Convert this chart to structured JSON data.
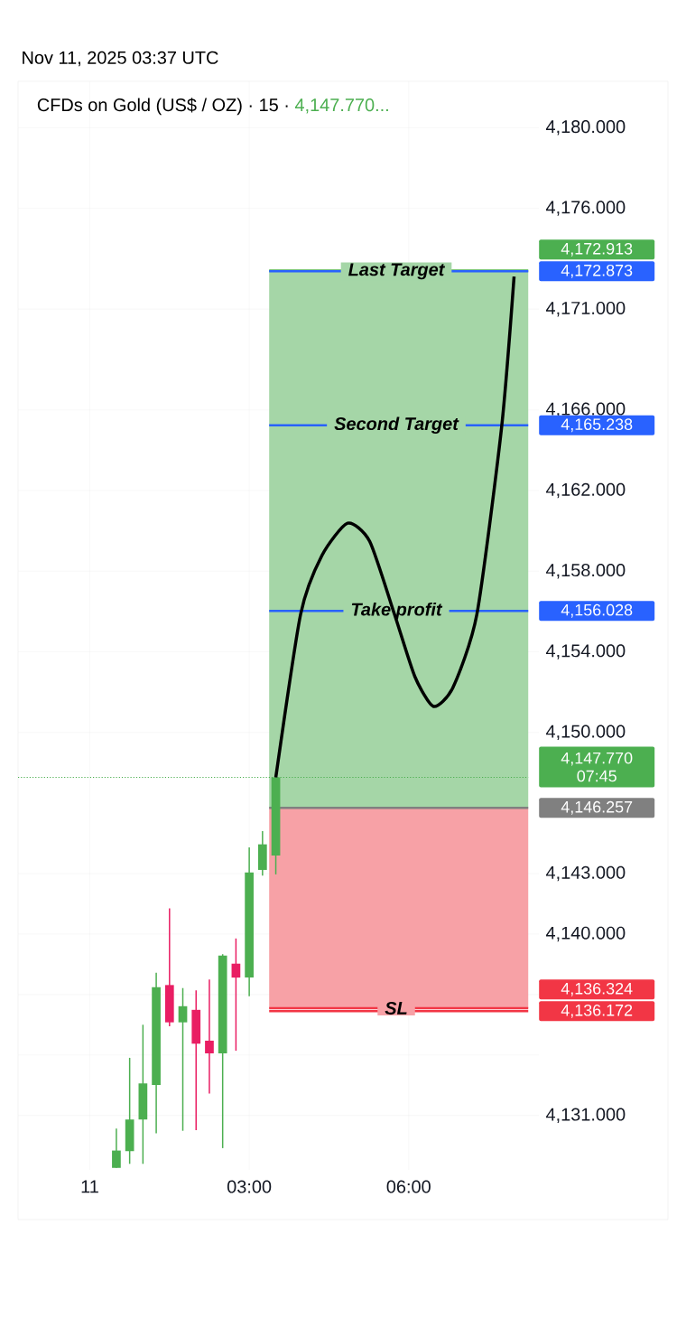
{
  "chart_data": {
    "type": "candlestick",
    "title": "CFDs on Gold (US$ / OZ) · 15 ·",
    "subtitle": "4,147.770...",
    "x": [
      "2025-11-11T00:30",
      "2025-11-11T00:45",
      "2025-11-11T01:00",
      "2025-11-11T01:15",
      "2025-11-11T01:30",
      "2025-11-11T01:45",
      "2025-11-11T02:00",
      "2025-11-11T02:15",
      "2025-11-11T02:30",
      "2025-11-11T02:45",
      "2025-11-11T03:00",
      "2025-11-11T03:15",
      "2025-11-11T03:30"
    ],
    "ohlc": [
      [
        4128.4,
        4130.35,
        4128.4,
        4129.26
      ],
      [
        4129.23,
        4133.86,
        4128.6,
        4130.8
      ],
      [
        4130.8,
        4135.5,
        4128.6,
        4132.59
      ],
      [
        4132.51,
        4138.08,
        4130.12,
        4137.36
      ],
      [
        4137.47,
        4141.27,
        4135.42,
        4135.62
      ],
      [
        4135.62,
        4137.32,
        4130.24,
        4136.42
      ],
      [
        4136.24,
        4137.21,
        4130.27,
        4134.56
      ],
      [
        4134.71,
        4137.74,
        4132.09,
        4134.08
      ],
      [
        4134.08,
        4139.0,
        4129.38,
        4138.93
      ],
      [
        4138.53,
        4139.78,
        4134.21,
        4137.84
      ],
      [
        4137.84,
        4144.3,
        4136.91,
        4143.06
      ],
      [
        4143.18,
        4145.1,
        4142.9,
        4144.45
      ],
      [
        4143.9,
        4147.9,
        4142.96,
        4147.77
      ]
    ],
    "colors": [
      "#4caf50",
      "#4caf50",
      "#4caf50",
      "#4caf50",
      "#e91e63",
      "#4caf50",
      "#e91e63",
      "#e91e63",
      "#4caf50",
      "#e91e63",
      "#4caf50",
      "#4caf50",
      "#4caf50"
    ],
    "series": [
      {
        "type": "line",
        "color": "#000000",
        "x": [
          "2025-11-11T03:30",
          "2025-11-11T03:58",
          "2025-11-11T04:22",
          "2025-11-11T04:51",
          "2025-11-11T05:16",
          "2025-11-11T05:44",
          "2025-11-11T06:07",
          "2025-11-11T06:28",
          "2025-11-11T06:50",
          "2025-11-11T07:17",
          "2025-11-11T07:45",
          "2025-11-11T07:59"
        ],
        "values": [
          4147.77,
          4155.86,
          4158.77,
          4160.38,
          4159.48,
          4155.86,
          4152.77,
          4151.29,
          4152.23,
          4155.86,
          4165.17,
          4172.61
        ]
      }
    ],
    "xlim": [
      "2025-11-10T22:39",
      "2025-11-11T08:27"
    ],
    "xticks": [
      {
        "value": "2025-11-11T00:00",
        "label": "11"
      },
      {
        "value": "2025-11-11T03:00",
        "label": "03:00"
      },
      {
        "value": "2025-11-11T06:00",
        "label": "06:00"
      }
    ],
    "ylim": [
      4128.3,
      4182.3
    ],
    "yticks": [
      {
        "value": 4131,
        "label": "4,131.000"
      },
      {
        "value": 4134,
        "label": null
      },
      {
        "value": 4137,
        "label": null
      },
      {
        "value": 4140,
        "label": "4,140.000"
      },
      {
        "value": 4143,
        "label": "4,143.000"
      },
      {
        "value": 4150,
        "label": "4,150.000"
      },
      {
        "value": 4154,
        "label": "4,154.000"
      },
      {
        "value": 4158,
        "label": "4,158.000"
      },
      {
        "value": 4162,
        "label": "4,162.000"
      },
      {
        "value": 4166,
        "label": "4,166.000"
      },
      {
        "value": 4171,
        "label": "4,171.000"
      },
      {
        "value": 4176,
        "label": "4,176.000"
      },
      {
        "value": 4180,
        "label": "4,180.000"
      }
    ],
    "grid": true,
    "bands": [
      {
        "axis": "y",
        "from": 4146.257,
        "to": 4172.873,
        "color": "#a5d6a7"
      },
      {
        "axis": "y",
        "from": 4136.324,
        "to": 4146.257,
        "color": "#f7a1a6"
      }
    ],
    "ref_lines": [
      {
        "axis": "y",
        "value": 4172.913,
        "label": "4,172.913",
        "color": "#4caf50"
      },
      {
        "axis": "y",
        "value": 4172.873,
        "label": "4,172.873",
        "color": "#2962ff"
      },
      {
        "axis": "y",
        "value": 4165.238,
        "label": "4,165.238",
        "color": "#2962ff"
      },
      {
        "axis": "y",
        "value": 4156.028,
        "label": "4,156.028",
        "color": "#2962ff"
      },
      {
        "axis": "y",
        "value": 4147.77,
        "label": "4,147.770",
        "color": "#4caf50",
        "line_style": "dotted"
      },
      {
        "axis": "y",
        "value": 4146.257,
        "label": "4,146.257",
        "color": "#808080"
      },
      {
        "axis": "y",
        "value": 4136.324,
        "label": "4,136.324",
        "color": "#f23645"
      },
      {
        "axis": "y",
        "value": 4136.172,
        "label": "4,136.172",
        "color": "#f23645"
      }
    ],
    "annotations": [
      "Nov 11, 2025 03:37 UTC",
      "07:45",
      {
        "text": "Last Target",
        "x": "2025-11-11T05:46",
        "y": 4172.873
      },
      {
        "text": "Second Target",
        "x": "2025-11-11T05:46",
        "y": 4165.238
      },
      {
        "text": "Take profit",
        "x": "2025-11-11T05:46",
        "y": 4156.028
      },
      {
        "text": "SL",
        "x": "2025-11-11T05:46",
        "y": 4136.324
      }
    ]
  }
}
